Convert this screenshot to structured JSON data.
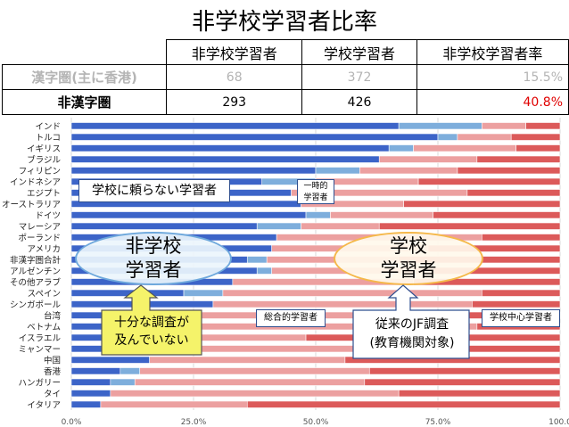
{
  "title": "非学校学習者比率",
  "summary": {
    "headers": [
      "非学校学習者",
      "学校学習者",
      "非学校学習者率"
    ],
    "rows": [
      {
        "label": "漢字圏(主に香港)",
        "nonschool": "68",
        "school": "372",
        "rate": "15.5%"
      },
      {
        "label": "非漢字圏",
        "nonschool": "293",
        "school": "426",
        "rate": "40.8%"
      }
    ]
  },
  "annotations": {
    "no_school_learners": "学校に頼らない学習者",
    "temporary_line1": "一時的",
    "temporary_line2": "学習者",
    "comprehensive": "総合的学習者",
    "school_centered": "学校中心学習者",
    "nonschool_oval_line1": "非学校",
    "nonschool_oval_line2": "学習者",
    "school_oval_line1": "学校",
    "school_oval_line2": "学習者",
    "insufficient_line1": "十分な調査が",
    "insufficient_line2": "及んでいない",
    "jf_survey_line1": "従来のJF調査",
    "jf_survey_line2": "(教育機関対象)"
  },
  "colors": {
    "nonschool_dark": "#3c64c8",
    "nonschool_light": "#7eaedc",
    "school_light": "#eca0a0",
    "school_dark": "#dc5a5a",
    "oval_blue": "#6ea8dc",
    "oval_orange": "#f5b84a",
    "arrow_fill": "#f5f36a",
    "highlight_red": "#e00000"
  },
  "chart_data": {
    "type": "bar",
    "orientation": "horizontal",
    "stacked": true,
    "percent": true,
    "xlim": [
      0,
      100
    ],
    "ticks": [
      "0.0%",
      "25.0%",
      "50.0%",
      "75.0%",
      "100.0"
    ],
    "categories": [
      "インド",
      "トルコ",
      "イギリス",
      "ブラジル",
      "フィリピン",
      "インドネシア",
      "エジプト",
      "オーストラリア",
      "ドイツ",
      "マレーシア",
      "ポーランド",
      "アメリカ",
      "非漢字圏合計",
      "アルゼンチン",
      "その他アラブ",
      "スペイン",
      "シンガポール",
      "台湾",
      "ベトナム",
      "イスラエル",
      "ミャンマー",
      "中国",
      "香港",
      "ハンガリー",
      "タイ",
      "イタリア"
    ],
    "series": [
      {
        "values": [
          67,
          75,
          65,
          63,
          50,
          39,
          45,
          47,
          48,
          38,
          42,
          41,
          36,
          38,
          33,
          23,
          29,
          17,
          19,
          10,
          15,
          16,
          10,
          8,
          8,
          6
        ]
      },
      {
        "values": [
          17,
          4,
          5,
          0,
          9,
          11,
          0,
          0,
          5,
          9,
          0,
          0,
          4,
          3,
          0,
          8,
          0,
          0,
          0,
          0,
          0,
          0,
          4,
          5,
          0,
          0
        ]
      },
      {
        "values": [
          9,
          11,
          21,
          20,
          20,
          21,
          36,
          21,
          21,
          16,
          42,
          32,
          27,
          33,
          37,
          53,
          53,
          56,
          64,
          38,
          56,
          40,
          47,
          47,
          59,
          30
        ]
      },
      {
        "values": [
          7,
          10,
          9,
          17,
          21,
          29,
          19,
          32,
          26,
          37,
          16,
          27,
          33,
          26,
          30,
          16,
          18,
          27,
          17,
          52,
          29,
          44,
          39,
          40,
          33,
          64
        ]
      }
    ]
  }
}
